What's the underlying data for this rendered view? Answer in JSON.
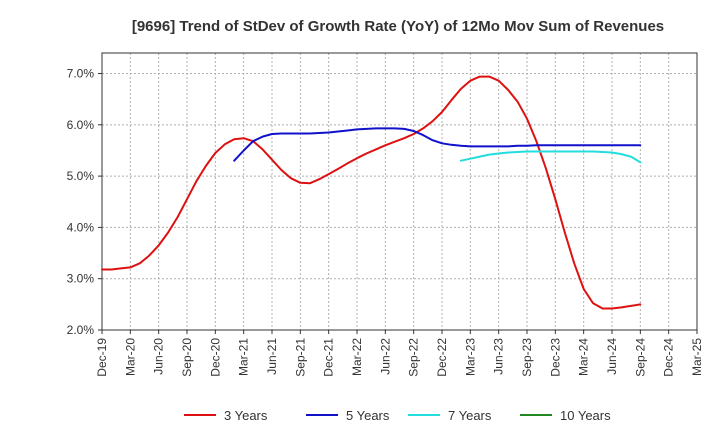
{
  "chart_data": {
    "type": "line",
    "title": "[9696]  Trend of StDev of Growth Rate (YoY) of 12Mo Mov Sum of Revenues",
    "xlabel": "",
    "ylabel": "",
    "ylim": [
      2.0,
      7.4
    ],
    "y_ticks": [
      2.0,
      3.0,
      4.0,
      5.0,
      6.0,
      7.0
    ],
    "y_tick_labels": [
      "2.0%",
      "3.0%",
      "4.0%",
      "5.0%",
      "6.0%",
      "7.0%"
    ],
    "x_tick_labels": [
      "Dec-19",
      "Mar-20",
      "Jun-20",
      "Sep-20",
      "Dec-20",
      "Mar-21",
      "Jun-21",
      "Sep-21",
      "Dec-21",
      "Mar-22",
      "Jun-22",
      "Sep-22",
      "Dec-22",
      "Mar-23",
      "Jun-23",
      "Sep-23",
      "Dec-23",
      "Mar-24",
      "Jun-24",
      "Sep-24",
      "Dec-24",
      "Mar-25"
    ],
    "x_range_months": [
      0,
      63
    ],
    "grid": true,
    "legend_position": "bottom",
    "series": [
      {
        "name": "3 Years",
        "color": "#dd1111",
        "x": [
          0,
          1,
          2,
          3,
          4,
          5,
          6,
          7,
          8,
          9,
          10,
          11,
          12,
          13,
          14,
          15,
          16,
          17,
          18,
          19,
          20,
          21,
          22,
          23,
          24,
          25,
          26,
          27,
          28,
          29,
          30,
          31,
          32,
          33,
          34,
          35,
          36,
          37,
          38,
          39,
          40,
          41,
          42,
          43,
          44,
          45,
          46,
          47,
          48,
          49,
          50,
          51,
          52,
          53,
          54,
          55,
          56,
          57,
          58,
          59,
          60
        ],
        "values": [
          3.18,
          3.18,
          3.2,
          3.22,
          3.3,
          3.45,
          3.65,
          3.9,
          4.2,
          4.55,
          4.9,
          5.2,
          5.45,
          5.62,
          5.72,
          5.74,
          5.68,
          5.52,
          5.32,
          5.12,
          4.96,
          4.87,
          4.86,
          4.94,
          5.04,
          5.14,
          5.25,
          5.35,
          5.44,
          5.52,
          5.6,
          5.67,
          5.74,
          5.82,
          5.93,
          6.07,
          6.25,
          6.48,
          6.7,
          6.86,
          6.94,
          6.94,
          6.86,
          6.68,
          6.45,
          6.12,
          5.68,
          5.15,
          4.55,
          3.9,
          3.3,
          2.8,
          2.52,
          2.42,
          2.42,
          2.44,
          2.47,
          2.5,
          null,
          null,
          null
        ]
      },
      {
        "name": "5 Years",
        "color": "#1111cc",
        "x": [
          14,
          15,
          16,
          17,
          18,
          19,
          20,
          21,
          22,
          23,
          24,
          25,
          26,
          27,
          28,
          29,
          30,
          31,
          32,
          33,
          34,
          35,
          36,
          37,
          38,
          39,
          40,
          41,
          42,
          43,
          44,
          45,
          46,
          47,
          48,
          49,
          50,
          51,
          52,
          53,
          54,
          55,
          56,
          57
        ],
        "values": [
          5.3,
          5.5,
          5.68,
          5.77,
          5.82,
          5.83,
          5.83,
          5.83,
          5.83,
          5.84,
          5.85,
          5.87,
          5.89,
          5.91,
          5.92,
          5.93,
          5.93,
          5.93,
          5.92,
          5.88,
          5.8,
          5.7,
          5.64,
          5.61,
          5.59,
          5.58,
          5.58,
          5.58,
          5.58,
          5.58,
          5.59,
          5.59,
          5.6,
          5.6,
          5.6,
          5.6,
          5.6,
          5.6,
          5.6,
          5.6,
          5.6,
          5.6,
          5.6,
          5.6
        ]
      },
      {
        "name": "7 Years",
        "color": "#22dddd",
        "x": [
          38,
          39,
          40,
          41,
          42,
          43,
          44,
          45,
          46,
          47,
          48,
          49,
          50,
          51,
          52,
          53,
          54,
          55,
          56,
          57
        ],
        "values": [
          5.3,
          5.34,
          5.38,
          5.42,
          5.44,
          5.46,
          5.47,
          5.48,
          5.48,
          5.48,
          5.48,
          5.48,
          5.48,
          5.48,
          5.48,
          5.47,
          5.46,
          5.43,
          5.38,
          5.27
        ]
      },
      {
        "name": "10 Years",
        "color": "#228822",
        "x": [],
        "values": []
      }
    ]
  }
}
